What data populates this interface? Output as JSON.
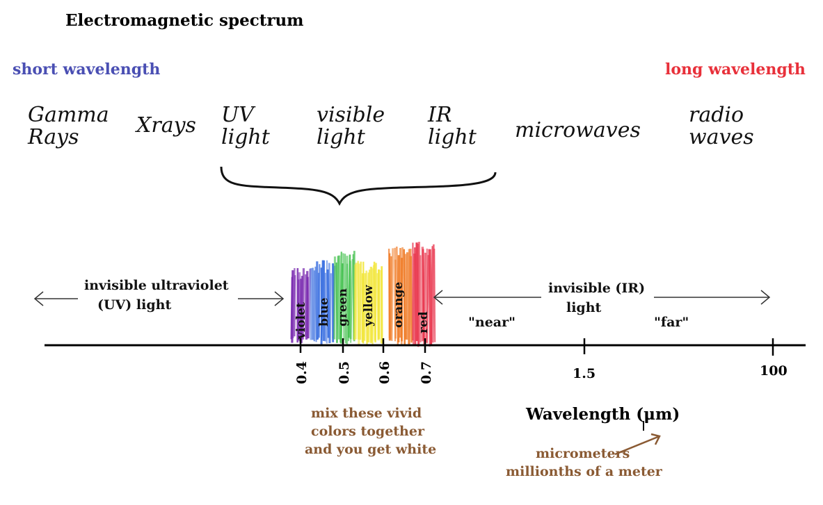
{
  "header": {
    "title": "Electromagnetic spectrum",
    "short_wavelength": "short wavelength",
    "long_wavelength": "long wavelength"
  },
  "spectrum_regions": {
    "gamma": "Gamma Rays",
    "xrays": "Xrays",
    "uv": "UV light",
    "visible": "visible light",
    "ir": "IR light",
    "microwaves": "microwaves",
    "radio": "radio waves"
  },
  "labels": {
    "uv_line1": "invisible ultraviolet",
    "uv_line2": "(UV) light",
    "ir_line1": "invisible (IR)",
    "ir_line2": "light",
    "near": "\"near\"",
    "far": "\"far\""
  },
  "visible_bands": [
    {
      "name": "violet",
      "color": "#7a2bb0"
    },
    {
      "name": "blue",
      "color": "#3a6fe0"
    },
    {
      "name": "green",
      "color": "#3fbf4a"
    },
    {
      "name": "yellow",
      "color": "#f2e63a"
    },
    {
      "name": "orange",
      "color": "#f07c28"
    },
    {
      "name": "red",
      "color": "#e8324a"
    }
  ],
  "axis": {
    "ticks": [
      "0.4",
      "0.5",
      "0.6",
      "0.7",
      "1.5",
      "100"
    ],
    "label": "Wavelength (μm)"
  },
  "notes": {
    "mix_line1": "mix these vivid",
    "mix_line2": "colors together",
    "mix_line3": "and you get white",
    "micro_line1": "micrometers",
    "micro_line2": "millionths of a meter"
  }
}
